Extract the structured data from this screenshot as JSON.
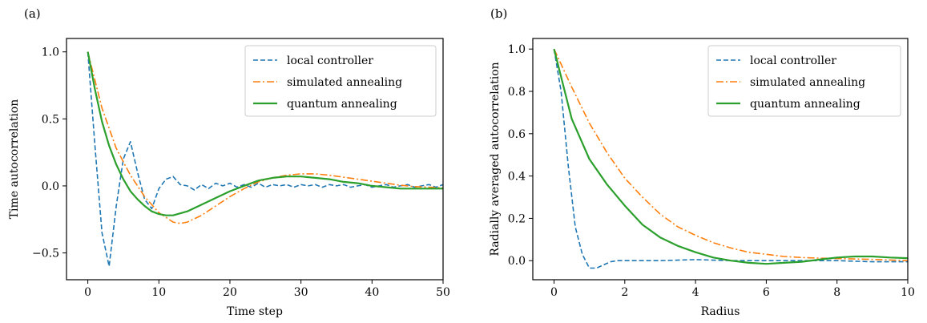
{
  "panels": [
    {
      "label": "(a)"
    },
    {
      "label": "(b)"
    }
  ],
  "chart_data": [
    {
      "type": "line",
      "xlabel": "Time step",
      "ylabel": "Time autocorrelation",
      "xlim": [
        -3,
        50
      ],
      "ylim": [
        -0.7,
        1.1
      ],
      "xticks": [
        0,
        10,
        20,
        30,
        40,
        50
      ],
      "xtick_labels": [
        "0",
        "10",
        "20",
        "30",
        "40",
        "50"
      ],
      "yticks": [
        -0.5,
        0.0,
        0.5,
        1.0
      ],
      "ytick_labels": [
        "−0.5",
        "0.0",
        "0.5",
        "1.0"
      ],
      "legend_position": "top-right",
      "series": [
        {
          "name": "local controller",
          "color": "#1f77b4",
          "style": "dashed",
          "x": [
            0,
            1,
            2,
            3,
            4,
            5,
            6,
            7,
            8,
            9,
            10,
            11,
            12,
            13,
            14,
            15,
            16,
            17,
            18,
            19,
            20,
            21,
            22,
            23,
            24,
            25,
            26,
            27,
            28,
            29,
            30,
            31,
            32,
            33,
            34,
            35,
            36,
            37,
            38,
            39,
            40,
            41,
            42,
            43,
            44,
            45,
            46,
            47,
            48,
            49,
            50
          ],
          "y": [
            1.0,
            0.3,
            -0.35,
            -0.6,
            -0.15,
            0.2,
            0.33,
            0.1,
            -0.1,
            -0.17,
            -0.02,
            0.05,
            0.07,
            0.01,
            0.0,
            -0.03,
            0.01,
            -0.02,
            0.02,
            0.0,
            0.02,
            -0.01,
            0.01,
            -0.01,
            0.02,
            -0.01,
            0.01,
            0.0,
            0.01,
            -0.01,
            0.01,
            0.0,
            0.01,
            -0.01,
            0.01,
            0.0,
            0.01,
            -0.01,
            0.0,
            0.01,
            -0.01,
            0.0,
            0.01,
            -0.01,
            0.0,
            0.01,
            -0.01,
            0.0,
            0.01,
            -0.01,
            0.01
          ]
        },
        {
          "name": "simulated annealing",
          "color": "#ff7f0e",
          "style": "dashdot",
          "x": [
            0,
            2,
            4,
            6,
            8,
            10,
            12,
            13,
            14,
            16,
            18,
            20,
            22,
            24,
            26,
            28,
            30,
            32,
            34,
            36,
            38,
            40,
            42,
            44,
            46,
            48,
            50
          ],
          "y": [
            1.0,
            0.58,
            0.28,
            0.08,
            -0.08,
            -0.2,
            -0.27,
            -0.28,
            -0.27,
            -0.22,
            -0.15,
            -0.08,
            -0.02,
            0.03,
            0.06,
            0.08,
            0.09,
            0.09,
            0.08,
            0.065,
            0.05,
            0.035,
            0.02,
            0.005,
            -0.005,
            -0.01,
            -0.015
          ]
        },
        {
          "name": "quantum annealing",
          "color": "#2ca02c",
          "style": "solid",
          "x": [
            0,
            1,
            2,
            3,
            4,
            5,
            6,
            7,
            8,
            9,
            10,
            11,
            12,
            14,
            16,
            18,
            20,
            22,
            24,
            26,
            28,
            30,
            32,
            34,
            36,
            38,
            40,
            42,
            44,
            46,
            48,
            50
          ],
          "y": [
            1.0,
            0.72,
            0.48,
            0.3,
            0.16,
            0.05,
            -0.04,
            -0.1,
            -0.15,
            -0.19,
            -0.21,
            -0.22,
            -0.22,
            -0.19,
            -0.14,
            -0.09,
            -0.04,
            0.0,
            0.04,
            0.06,
            0.07,
            0.07,
            0.06,
            0.05,
            0.03,
            0.02,
            0.0,
            -0.01,
            -0.02,
            -0.02,
            -0.02,
            -0.02
          ]
        }
      ]
    },
    {
      "type": "line",
      "xlabel": "Radius",
      "ylabel": "Radially averaged autocorrelation",
      "xlim": [
        -0.6,
        10
      ],
      "ylim": [
        -0.09,
        1.05
      ],
      "xticks": [
        0,
        2,
        4,
        6,
        8,
        10
      ],
      "xtick_labels": [
        "0",
        "2",
        "4",
        "6",
        "8",
        "10"
      ],
      "yticks": [
        0.0,
        0.2,
        0.4,
        0.6,
        0.8,
        1.0
      ],
      "ytick_labels": [
        "0.0",
        "0.2",
        "0.4",
        "0.6",
        "0.8",
        "1.0"
      ],
      "legend_position": "top-right",
      "series": [
        {
          "name": "local controller",
          "color": "#1f77b4",
          "style": "dashed",
          "x": [
            0,
            0.2,
            0.4,
            0.6,
            0.8,
            1.0,
            1.2,
            1.4,
            1.6,
            1.8,
            2,
            3,
            4,
            5,
            6,
            7,
            8,
            9,
            10
          ],
          "y": [
            1.0,
            0.8,
            0.45,
            0.16,
            0.03,
            -0.035,
            -0.035,
            -0.02,
            -0.005,
            0.0,
            0.0,
            0.0,
            0.005,
            0.0,
            0.0,
            0.0,
            0.0,
            -0.005,
            -0.005
          ]
        },
        {
          "name": "simulated annealing",
          "color": "#ff7f0e",
          "style": "dashdot",
          "x": [
            0,
            0.5,
            1,
            1.5,
            2,
            2.5,
            3,
            3.5,
            4,
            4.5,
            5,
            5.5,
            6,
            6.5,
            7,
            7.5,
            8,
            8.5,
            9,
            9.5,
            10
          ],
          "y": [
            1.0,
            0.82,
            0.65,
            0.51,
            0.39,
            0.3,
            0.22,
            0.16,
            0.12,
            0.085,
            0.06,
            0.04,
            0.03,
            0.02,
            0.015,
            0.012,
            0.01,
            0.008,
            0.006,
            0.003,
            0.0
          ]
        },
        {
          "name": "quantum annealing",
          "color": "#2ca02c",
          "style": "solid",
          "x": [
            0,
            0.5,
            1,
            1.5,
            2,
            2.5,
            3,
            3.5,
            4,
            4.5,
            5,
            5.5,
            6,
            6.5,
            7,
            7.5,
            8,
            8.5,
            9,
            9.5,
            10
          ],
          "y": [
            1.0,
            0.67,
            0.48,
            0.36,
            0.26,
            0.17,
            0.11,
            0.07,
            0.04,
            0.015,
            0.0,
            -0.01,
            -0.015,
            -0.01,
            -0.005,
            0.005,
            0.015,
            0.02,
            0.02,
            0.015,
            0.012
          ]
        }
      ]
    }
  ]
}
